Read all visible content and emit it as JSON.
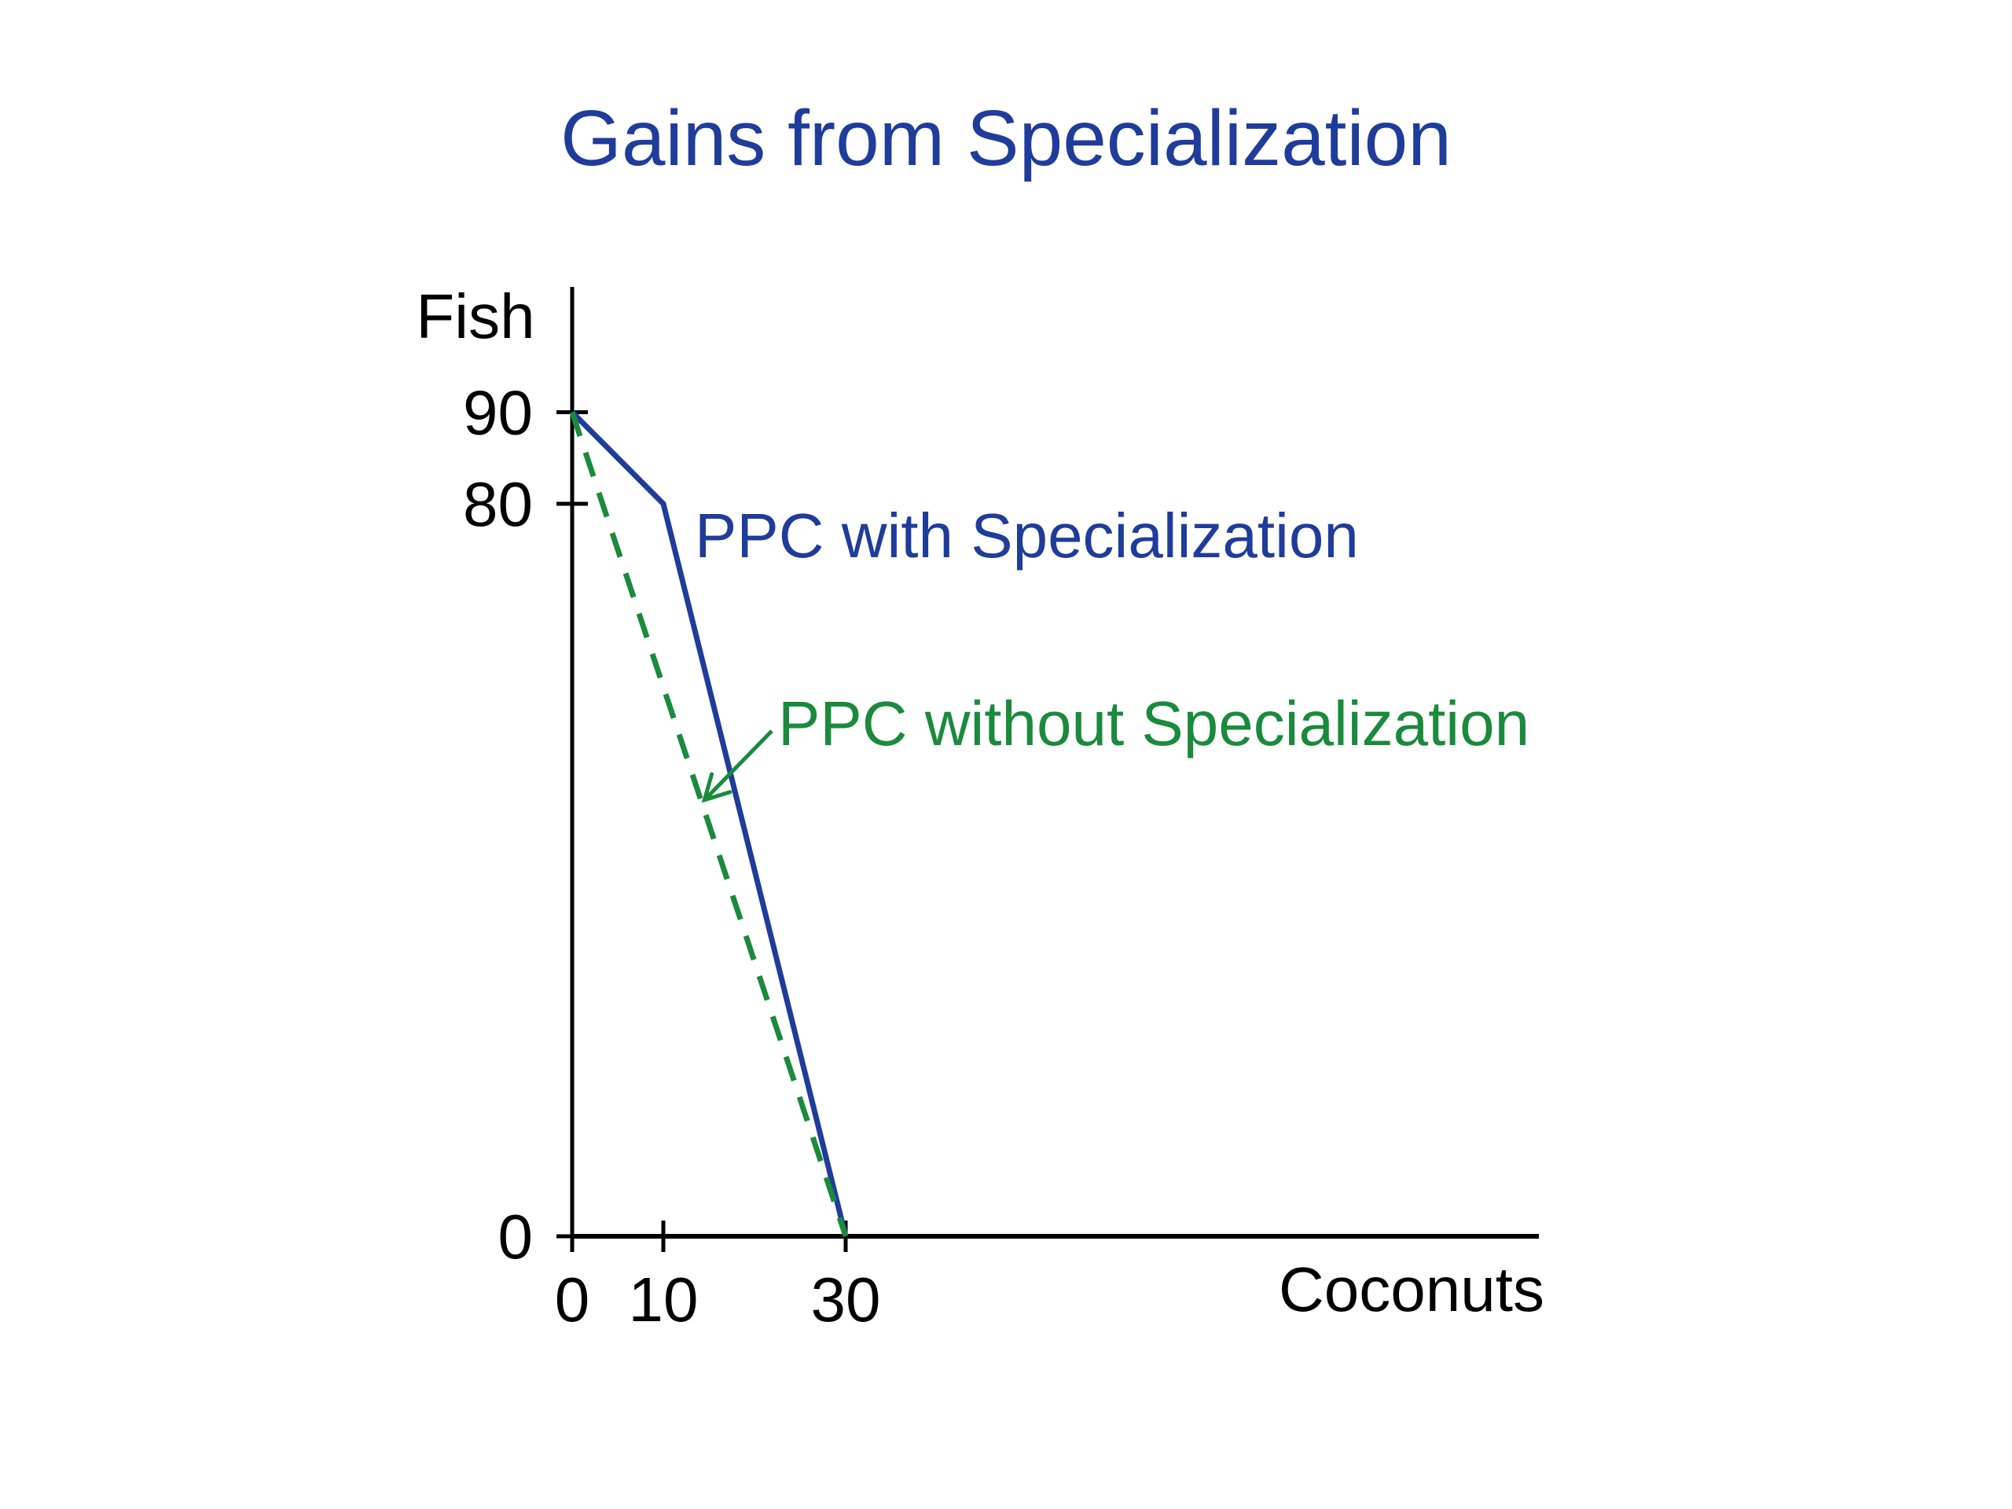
{
  "chart_data": {
    "type": "line",
    "title": "Gains from Specialization",
    "xlabel": "Coconuts",
    "ylabel": "Fish",
    "xlim": [
      0,
      105
    ],
    "ylim": [
      0,
      110
    ],
    "xticks": [
      0,
      10,
      30
    ],
    "yticks": [
      0,
      80,
      90
    ],
    "grid": false,
    "colors": {
      "with": "#1f3c9b",
      "without": "#1a8a3c",
      "axis": "#000000",
      "title": "#1f3c9b"
    },
    "series": [
      {
        "name": "PPC with Specialization",
        "style": "solid",
        "color": "#1f3c9b",
        "x": [
          0,
          10,
          30
        ],
        "y": [
          90,
          80,
          0
        ]
      },
      {
        "name": "PPC without Specialization",
        "style": "dashed",
        "color": "#1a8a3c",
        "x": [
          0,
          30
        ],
        "y": [
          90,
          0
        ]
      }
    ],
    "annotations": [
      {
        "text": "PPC with Specialization",
        "series": 0
      },
      {
        "text": "PPC without Specialization",
        "series": 1,
        "arrow": true
      }
    ]
  }
}
